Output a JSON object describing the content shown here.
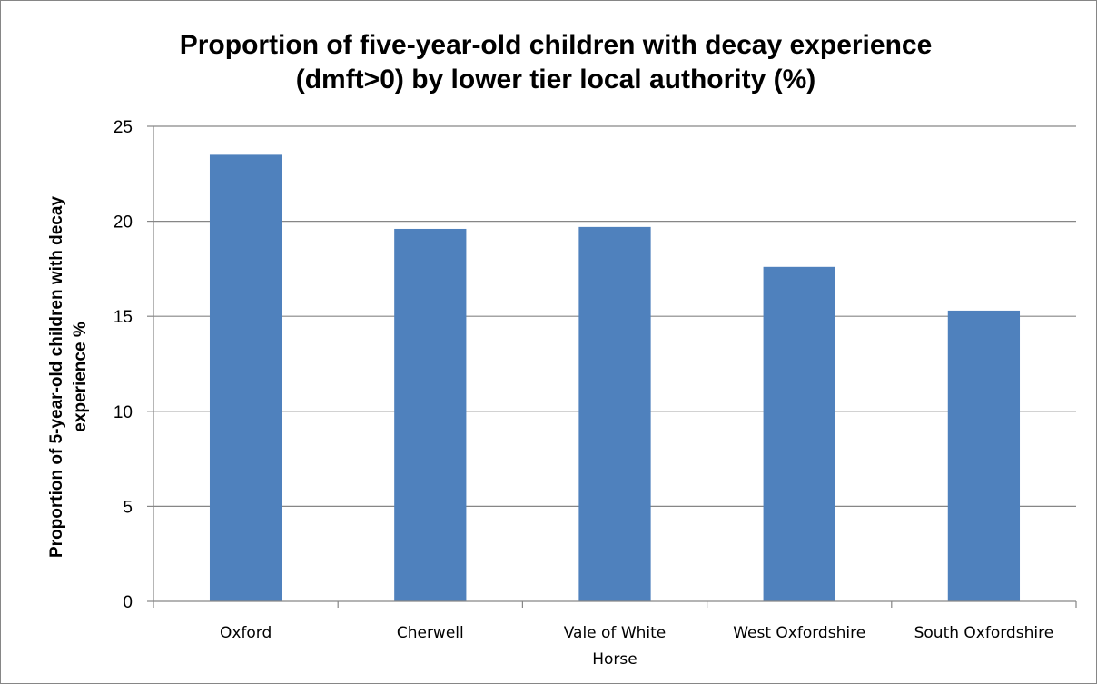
{
  "chart_data": {
    "type": "bar",
    "title": [
      "Proportion of five-year-old children with decay experience",
      "(dmft>0) by lower tier local authority (%)"
    ],
    "xlabel": "",
    "ylabel": [
      "Proportion of 5-year-old children with decay",
      "experience %"
    ],
    "categories": [
      [
        "Oxford"
      ],
      [
        "Cherwell"
      ],
      [
        "Vale of White",
        "Horse"
      ],
      [
        "West Oxfordshire"
      ],
      [
        "South Oxfordshire"
      ]
    ],
    "values": [
      23.5,
      19.6,
      19.7,
      17.6,
      15.3
    ],
    "ylim": [
      0,
      25
    ],
    "yticks": [
      0,
      5,
      10,
      15,
      20,
      25
    ],
    "grid": true,
    "legend": "none",
    "bar_color": "#4f81bd",
    "grid_color": "#868686"
  }
}
